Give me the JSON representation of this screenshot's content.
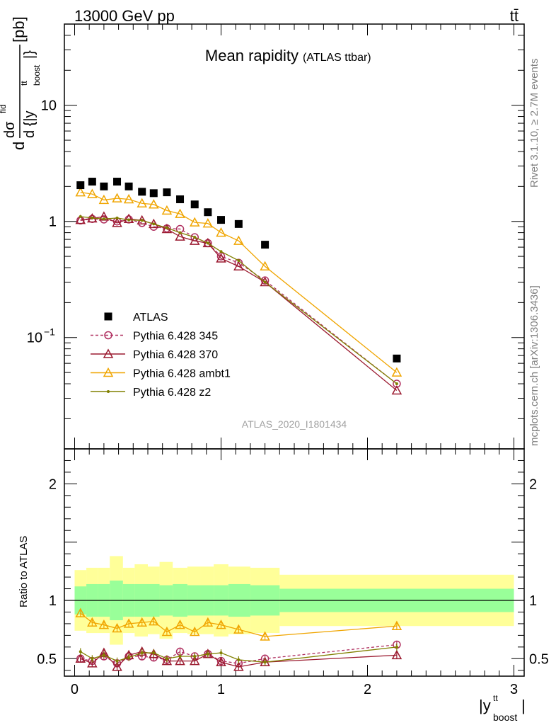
{
  "header": {
    "left": "13000 GeV pp",
    "right": "tt̄"
  },
  "side_labels": {
    "rivet": "Rivet 3.1.10, ≥ 2.7M events",
    "mcplots": "mcplots.cern.ch [arXiv:1306.3436]"
  },
  "chart_data": [
    {
      "type": "scatter",
      "title": "Mean rapidity",
      "subtitle": "(ATLAS ttbar)",
      "watermark": "ATLAS_2020_I1801434",
      "ylabel_parts": [
        "d",
        "dσ",
        "fid",
        "d {|y",
        "tt",
        "boost",
        "|}",
        " [pb]"
      ],
      "yscale": "log",
      "ylim": [
        0.011,
        50
      ],
      "xlim": [
        -0.07,
        3.07
      ],
      "yticks": [
        {
          "value": 10,
          "label": "10"
        },
        {
          "value": 1,
          "label": "1"
        },
        {
          "value": 0.1,
          "label": "10",
          "sup": "−1"
        }
      ],
      "legend_position": "lower-left",
      "series": [
        {
          "name": "ATLAS",
          "color": "#000000",
          "marker": "square",
          "x": [
            0.04,
            0.12,
            0.2,
            0.29,
            0.37,
            0.46,
            0.54,
            0.63,
            0.72,
            0.82,
            0.91,
            1.0,
            1.12,
            1.3,
            2.2
          ],
          "y": [
            2.05,
            2.2,
            2.0,
            2.2,
            2.0,
            1.8,
            1.75,
            1.78,
            1.55,
            1.4,
            1.2,
            1.03,
            0.95,
            0.63,
            0.066
          ]
        },
        {
          "name": "Pythia 6.428 345",
          "color": "#b03060",
          "marker": "circle-open",
          "dashed": true,
          "x": [
            0.04,
            0.12,
            0.2,
            0.29,
            0.37,
            0.46,
            0.54,
            0.63,
            0.72,
            0.82,
            0.91,
            1.0,
            1.12,
            1.3,
            2.2
          ],
          "y": [
            1.02,
            1.05,
            1.04,
            1.0,
            1.04,
            0.97,
            0.9,
            0.87,
            0.86,
            0.73,
            0.65,
            0.5,
            0.44,
            0.31,
            0.04
          ]
        },
        {
          "name": "Pythia 6.428 370",
          "color": "#9b1b30",
          "marker": "triangle-open",
          "x": [
            0.04,
            0.12,
            0.2,
            0.29,
            0.37,
            0.46,
            0.54,
            0.63,
            0.72,
            0.82,
            0.91,
            1.0,
            1.12,
            1.3,
            2.2
          ],
          "y": [
            1.03,
            1.06,
            1.1,
            0.97,
            1.05,
            1.02,
            0.95,
            0.86,
            0.74,
            0.68,
            0.65,
            0.48,
            0.41,
            0.3,
            0.035
          ]
        },
        {
          "name": "Pythia 6.428 ambt1",
          "color": "#f0a500",
          "marker": "triangle-open",
          "x": [
            0.04,
            0.12,
            0.2,
            0.29,
            0.37,
            0.46,
            0.54,
            0.63,
            0.72,
            0.82,
            0.91,
            1.0,
            1.12,
            1.3,
            2.2
          ],
          "y": [
            1.78,
            1.72,
            1.53,
            1.58,
            1.55,
            1.43,
            1.4,
            1.24,
            1.16,
            0.98,
            0.96,
            0.8,
            0.68,
            0.41,
            0.05
          ]
        },
        {
          "name": "Pythia 6.428 z2",
          "color": "#808000",
          "marker": "dot",
          "x": [
            0.04,
            0.12,
            0.2,
            0.29,
            0.37,
            0.46,
            0.54,
            0.63,
            0.72,
            0.82,
            0.91,
            1.0,
            1.12,
            1.3,
            2.2
          ],
          "y": [
            1.1,
            1.07,
            1.05,
            1.07,
            1.03,
            1.02,
            0.95,
            0.88,
            0.8,
            0.73,
            0.65,
            0.55,
            0.46,
            0.3,
            0.04
          ]
        }
      ]
    },
    {
      "type": "scatter",
      "ylabel": "Ratio to ATLAS",
      "xlabel_parts": [
        "|y",
        "tt",
        "boost",
        "|"
      ],
      "ylim": [
        0.35,
        2.3
      ],
      "xlim": [
        -0.07,
        3.07
      ],
      "yticks": [
        {
          "value": 2,
          "label": "2"
        },
        {
          "value": 1,
          "label": "1"
        },
        {
          "value": 0.5,
          "label": "0.5"
        }
      ],
      "xticks": [
        {
          "value": 0,
          "label": "0"
        },
        {
          "value": 1,
          "label": "1"
        },
        {
          "value": 2,
          "label": "2"
        },
        {
          "value": 3,
          "label": "3"
        }
      ],
      "bands": {
        "edges": [
          0,
          0.08,
          0.16,
          0.24,
          0.33,
          0.41,
          0.5,
          0.58,
          0.67,
          0.77,
          0.86,
          0.95,
          1.05,
          1.2,
          1.4,
          3.0
        ],
        "stat_low": [
          0.88,
          0.86,
          0.86,
          0.83,
          0.86,
          0.86,
          0.86,
          0.87,
          0.86,
          0.87,
          0.87,
          0.87,
          0.86,
          0.87,
          0.9
        ],
        "stat_high": [
          1.12,
          1.14,
          1.14,
          1.17,
          1.14,
          1.14,
          1.14,
          1.13,
          1.14,
          1.13,
          1.13,
          1.13,
          1.14,
          1.13,
          1.1
        ],
        "tot_low": [
          0.74,
          0.72,
          0.72,
          0.62,
          0.72,
          0.69,
          0.71,
          0.67,
          0.72,
          0.71,
          0.71,
          0.69,
          0.71,
          0.72,
          0.78
        ],
        "tot_high": [
          1.26,
          1.28,
          1.28,
          1.38,
          1.28,
          1.31,
          1.29,
          1.33,
          1.28,
          1.29,
          1.29,
          1.31,
          1.29,
          1.28,
          1.22
        ],
        "stat_color": "#99ff99",
        "tot_color": "#ffff99"
      },
      "series": [
        {
          "name": "Pythia 6.428 345",
          "color": "#b03060",
          "marker": "circle-open",
          "dashed": true,
          "x": [
            0.04,
            0.12,
            0.2,
            0.29,
            0.37,
            0.46,
            0.54,
            0.63,
            0.72,
            0.82,
            0.91,
            1.0,
            1.12,
            1.3,
            2.2
          ],
          "y": [
            0.5,
            0.48,
            0.52,
            0.46,
            0.52,
            0.52,
            0.51,
            0.49,
            0.56,
            0.52,
            0.54,
            0.48,
            0.46,
            0.5,
            0.62
          ],
          "err": [
            0.03,
            0.03,
            0.03,
            0.03,
            0.03,
            0.03,
            0.03,
            0.03,
            0.03,
            0.03,
            0.03,
            0.03,
            0.03,
            0.03,
            0.03
          ]
        },
        {
          "name": "Pythia 6.428 370",
          "color": "#9b1b30",
          "marker": "triangle-open",
          "x": [
            0.04,
            0.12,
            0.2,
            0.29,
            0.37,
            0.46,
            0.54,
            0.63,
            0.72,
            0.82,
            0.91,
            1.0,
            1.12,
            1.3,
            2.2
          ],
          "y": [
            0.5,
            0.46,
            0.55,
            0.43,
            0.53,
            0.56,
            0.54,
            0.48,
            0.48,
            0.48,
            0.54,
            0.47,
            0.43,
            0.47,
            0.53
          ],
          "err": [
            0.03,
            0.03,
            0.03,
            0.03,
            0.03,
            0.03,
            0.03,
            0.03,
            0.03,
            0.03,
            0.03,
            0.03,
            0.03,
            0.03,
            0.03
          ]
        },
        {
          "name": "Pythia 6.428 ambt1",
          "color": "#f0a500",
          "marker": "triangle-open",
          "x": [
            0.04,
            0.12,
            0.2,
            0.29,
            0.37,
            0.46,
            0.54,
            0.63,
            0.72,
            0.82,
            0.91,
            1.0,
            1.12,
            1.3,
            2.2
          ],
          "y": [
            0.89,
            0.81,
            0.79,
            0.76,
            0.8,
            0.81,
            0.82,
            0.73,
            0.79,
            0.73,
            0.81,
            0.79,
            0.75,
            0.69,
            0.78
          ],
          "err": [
            0.03,
            0.03,
            0.03,
            0.03,
            0.03,
            0.03,
            0.03,
            0.03,
            0.03,
            0.03,
            0.03,
            0.03,
            0.03,
            0.03,
            0.03
          ]
        },
        {
          "name": "Pythia 6.428 z2",
          "color": "#808000",
          "marker": "dot",
          "x": [
            0.04,
            0.12,
            0.2,
            0.29,
            0.37,
            0.46,
            0.54,
            0.63,
            0.72,
            0.82,
            0.91,
            1.0,
            1.12,
            1.3,
            2.2
          ],
          "y": [
            0.56,
            0.5,
            0.53,
            0.48,
            0.51,
            0.55,
            0.55,
            0.5,
            0.52,
            0.52,
            0.54,
            0.55,
            0.49,
            0.47,
            0.6
          ],
          "err": [
            0.03,
            0.03,
            0.03,
            0.03,
            0.03,
            0.03,
            0.03,
            0.03,
            0.03,
            0.03,
            0.03,
            0.03,
            0.03,
            0.03,
            0.03
          ]
        }
      ]
    }
  ]
}
